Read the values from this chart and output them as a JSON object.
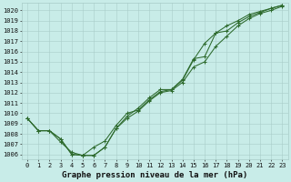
{
  "x": [
    0,
    1,
    2,
    3,
    4,
    5,
    6,
    7,
    8,
    9,
    10,
    11,
    12,
    13,
    14,
    15,
    16,
    17,
    18,
    19,
    20,
    21,
    22,
    23
  ],
  "line1": [
    1009.5,
    1008.3,
    1008.3,
    1007.2,
    1006.2,
    1005.9,
    1006.7,
    1007.3,
    1008.8,
    1010.0,
    1010.3,
    1011.3,
    1012.1,
    1012.3,
    1013.2,
    1015.2,
    1016.8,
    1017.8,
    1018.5,
    1019.0,
    1019.6,
    1019.9,
    1020.2,
    1020.5
  ],
  "line2": [
    1009.5,
    1008.3,
    1008.3,
    1007.5,
    1006.0,
    1005.9,
    1005.9,
    1006.7,
    1008.5,
    1009.5,
    1010.2,
    1011.2,
    1012.0,
    1012.2,
    1013.0,
    1014.5,
    1015.0,
    1016.5,
    1017.5,
    1018.5,
    1019.2,
    1019.7,
    1020.0,
    1020.4
  ],
  "line3": [
    1009.5,
    1008.3,
    1008.3,
    1007.5,
    1006.0,
    1005.9,
    1005.9,
    1006.7,
    1008.5,
    1009.7,
    1010.5,
    1011.5,
    1012.3,
    1012.3,
    1013.3,
    1015.3,
    1015.5,
    1017.8,
    1018.0,
    1018.8,
    1019.4,
    1019.8,
    1020.2,
    1020.5
  ],
  "ylim_min": 1005.5,
  "ylim_max": 1020.7,
  "xlim_min": -0.5,
  "xlim_max": 23.5,
  "yticks": [
    1006,
    1007,
    1008,
    1009,
    1010,
    1011,
    1012,
    1013,
    1014,
    1015,
    1016,
    1017,
    1018,
    1019,
    1020
  ],
  "xticks": [
    0,
    1,
    2,
    3,
    4,
    5,
    6,
    7,
    8,
    9,
    10,
    11,
    12,
    13,
    14,
    15,
    16,
    17,
    18,
    19,
    20,
    21,
    22,
    23
  ],
  "xlabel": "Graphe pression niveau de la mer (hPa)",
  "line_color": "#2d6a2d",
  "bg_color": "#c8ece8",
  "grid_color": "#a8ccc8",
  "tick_fontsize": 5.0,
  "xlabel_fontsize": 6.5
}
